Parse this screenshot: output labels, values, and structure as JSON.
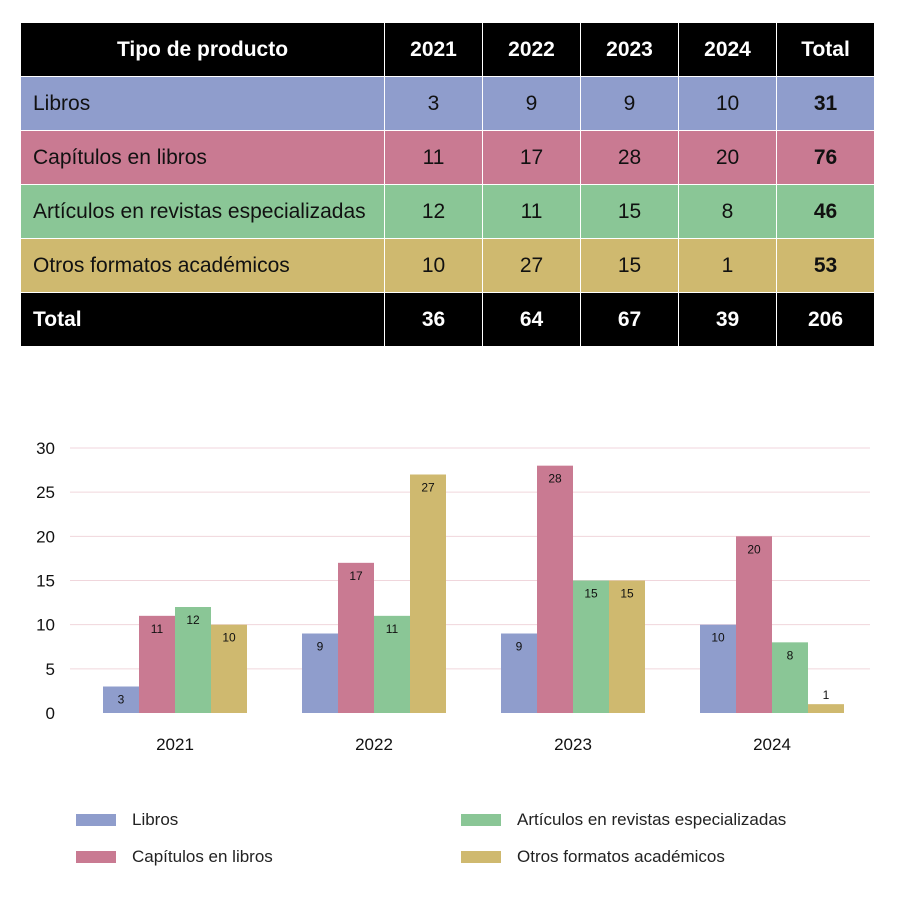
{
  "table": {
    "header": [
      "Tipo de producto",
      "2021",
      "2022",
      "2023",
      "2024",
      "Total"
    ],
    "rows": [
      {
        "label": "Libros",
        "values": [
          "3",
          "9",
          "9",
          "10"
        ],
        "total": "31"
      },
      {
        "label": "Capítulos en libros",
        "values": [
          "11",
          "17",
          "28",
          "20"
        ],
        "total": "76"
      },
      {
        "label": "Artículos en revistas especializadas",
        "values": [
          "12",
          "11",
          "15",
          "8"
        ],
        "total": "46"
      },
      {
        "label": "Otros formatos académicos",
        "values": [
          "10",
          "27",
          "15",
          "1"
        ],
        "total": "53"
      }
    ],
    "total_row": {
      "label": "Total",
      "values": [
        "36",
        "64",
        "67",
        "39"
      ],
      "total": "206"
    }
  },
  "colors": {
    "libros": "#8f9dcc",
    "capitulos": "#c97a92",
    "articulos": "#8ac696",
    "otros": "#cfb96f",
    "header": "#000000",
    "gridline": "#f0d6dc"
  },
  "chart_data": {
    "type": "bar",
    "categories": [
      "2021",
      "2022",
      "2023",
      "2024"
    ],
    "series": [
      {
        "name": "Libros",
        "values": [
          3,
          9,
          9,
          10
        ]
      },
      {
        "name": "Capítulos en libros",
        "values": [
          11,
          17,
          28,
          20
        ]
      },
      {
        "name": "Artículos en revistas especializadas",
        "values": [
          12,
          11,
          15,
          8
        ]
      },
      {
        "name": "Otros formatos académicos",
        "values": [
          10,
          27,
          15,
          1
        ]
      }
    ],
    "yticks": [
      "0",
      "5",
      "10",
      "15",
      "20",
      "25",
      "30"
    ],
    "ylim": [
      0,
      30
    ],
    "grid": true,
    "legend": "bottom"
  }
}
